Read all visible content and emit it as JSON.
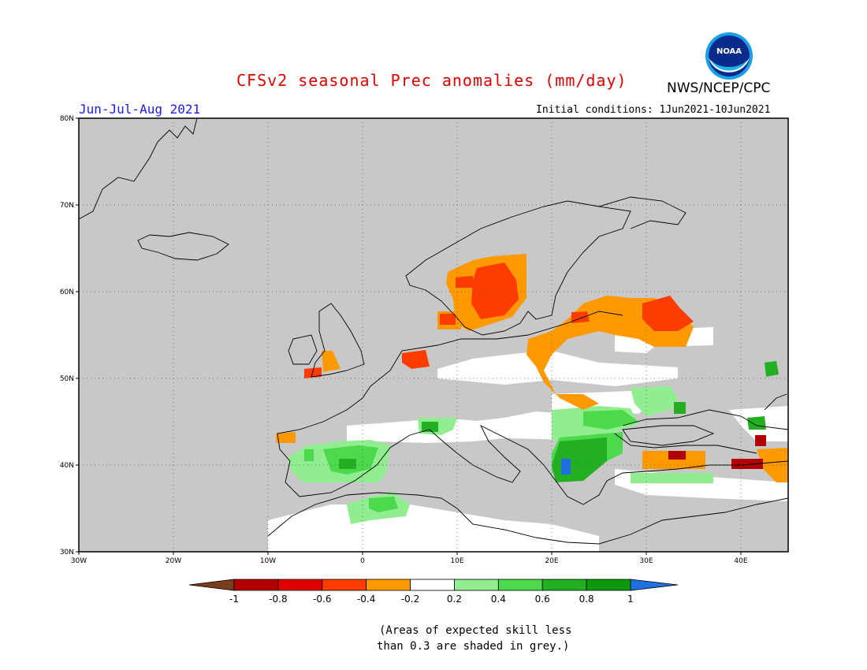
{
  "header": {
    "title": "CFSv2 seasonal Prec anomalies (mm/day)",
    "agency": "NWS/NCEP/CPC",
    "season": "Jun-Jul-Aug 2021",
    "initial_conditions": "Initial conditions: 1Jun2021-10Jun2021",
    "logo_text": "NOAA"
  },
  "map": {
    "lat_labels": [
      "80N",
      "70N",
      "60N",
      "50N",
      "40N",
      "30N"
    ],
    "lon_labels": [
      "30W",
      "20W",
      "10W",
      "0",
      "10E",
      "20E",
      "30E",
      "40E"
    ],
    "lon_range": [
      -30,
      45
    ],
    "lat_range": [
      30,
      80
    ],
    "background_color": "#c8c8c8"
  },
  "colorbar": {
    "labels": [
      "-1",
      "-0.8",
      "-0.6",
      "-0.4",
      "-0.2",
      "0.2",
      "0.4",
      "0.6",
      "0.8",
      "1"
    ],
    "colors": [
      "#7a3d1a",
      "#b20000",
      "#e00000",
      "#ff3c00",
      "#ff9900",
      "#ffffff",
      "#90ee90",
      "#4cd94c",
      "#22b022",
      "#0c9a0c",
      "#1f6fe0"
    ]
  },
  "notes": {
    "line1": "(Areas of expected skill less",
    "line2": "than 0.3 are shaded in grey.)"
  }
}
